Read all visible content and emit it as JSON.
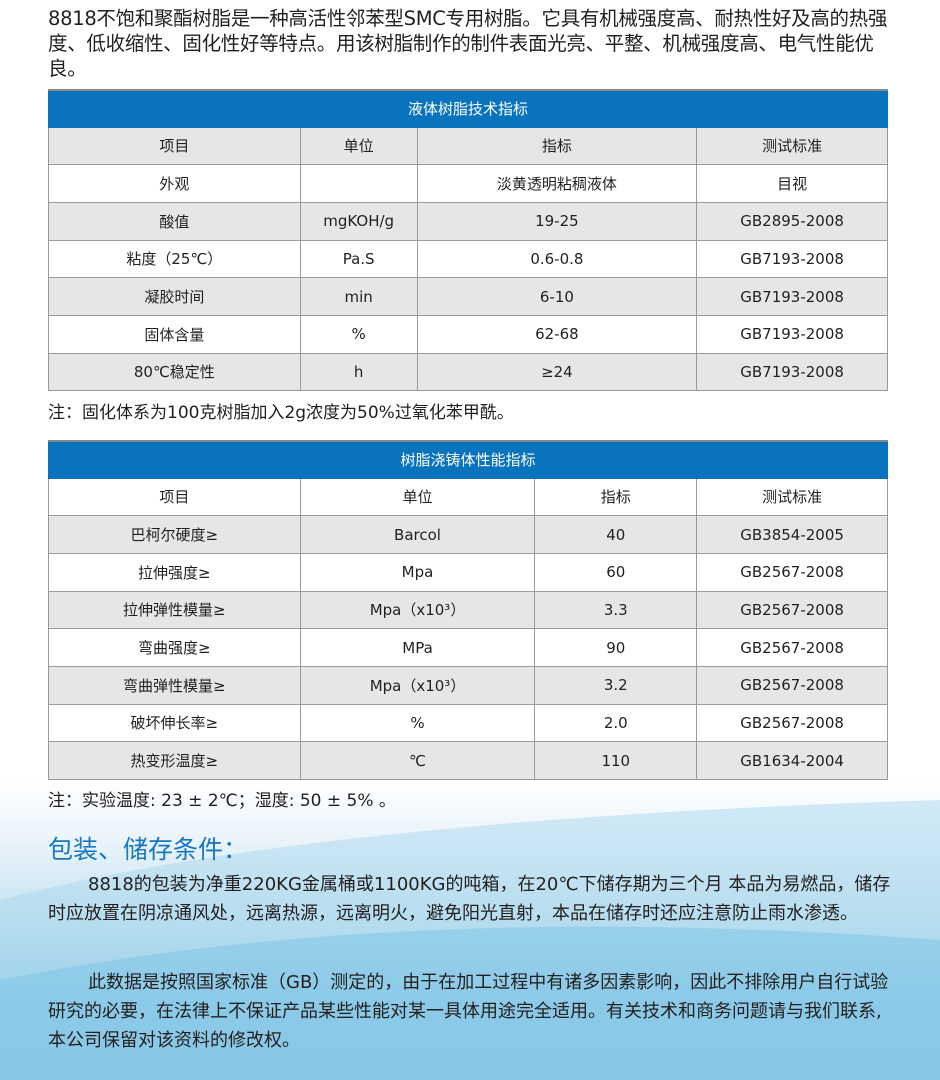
{
  "intro": "8818不饱和聚酯树脂是一种高活性邻苯型SMC专用树脂。它具有机械强度高、耐热性好及高的热强度、低收缩性、固化性好等特点。用该树脂制作的制件表面光亮、平整、机械强度高、电气性能优良。",
  "table1": {
    "title": "液体树脂技术指标",
    "headers": [
      "项目",
      "单位",
      "指标",
      "测试标准"
    ],
    "rows": [
      [
        "外观",
        "",
        "淡黄透明粘稠液体",
        "目视"
      ],
      [
        "酸值",
        "mgKOH/g",
        "19-25",
        "GB2895-2008"
      ],
      [
        "粘度（25℃）",
        "Pa.S",
        "0.6-0.8",
        "GB7193-2008"
      ],
      [
        "凝胶时间",
        "min",
        "6-10",
        "GB7193-2008"
      ],
      [
        "固体含量",
        "%",
        "62-68",
        "GB7193-2008"
      ],
      [
        "80℃稳定性",
        "h",
        "≥24",
        "GB7193-2008"
      ]
    ]
  },
  "note1": "注：固化体系为100克树脂加入2g浓度为50%过氧化苯甲酰。",
  "table2": {
    "title": "树脂浇铸体性能指标",
    "headers": [
      "项目",
      "单位",
      "指标",
      "测试标准"
    ],
    "rows": [
      [
        "巴柯尔硬度≥",
        "Barcol",
        "40",
        "GB3854-2005"
      ],
      [
        "拉伸强度≥",
        "Mpa",
        "60",
        "GB2567-2008"
      ],
      [
        "拉伸弹性模量≥",
        "Mpa（x10³）",
        "3.3",
        "GB2567-2008"
      ],
      [
        "弯曲强度≥",
        "MPa",
        "90",
        "GB2567-2008"
      ],
      [
        "弯曲弹性模量≥",
        "Mpa（x10³）",
        "3.2",
        "GB2567-2008"
      ],
      [
        "破坏伸长率≥",
        "%",
        "2.0",
        "GB2567-2008"
      ],
      [
        "热变形温度≥",
        "℃",
        "110",
        "GB1634-2004"
      ]
    ]
  },
  "note2": "注：实验温度: 23 ± 2℃；湿度: 50 ± 5% 。",
  "section": {
    "title": "包装、储存条件：",
    "p1": "8818的包装为净重220KG金属桶或1100KG的吨箱，在20℃下储存期为三个月 本品为易燃品，储存时应放置在阴凉通风处，远离热源，远离明火，避免阳光直射，本品在储存时还应注意防止雨水渗透。",
    "p2": "此数据是按照国家标准（GB）测定的，由于在加工过程中有诸多因素影响，因此不排除用户自行试验研究的必要，在法律上不保证产品某些性能对某一具体用途完全适用。有关技术和商务问题请与我们联系,本公司保留对该资料的修改权。"
  },
  "colors": {
    "header": "#0a73bd",
    "heading": "#1677c2",
    "stripe": "#e6e6e6"
  }
}
